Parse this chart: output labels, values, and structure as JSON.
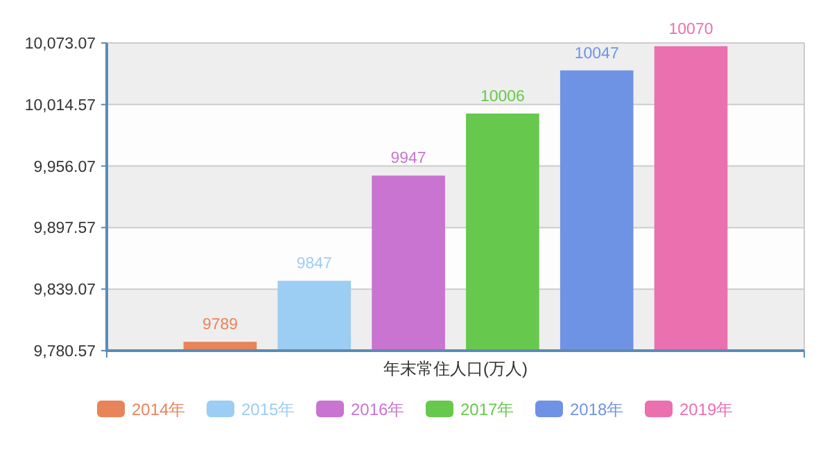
{
  "chart_data": {
    "type": "bar",
    "categories": [
      "年末常住人口(万人)"
    ],
    "series": [
      {
        "name": "2014年",
        "color": "#e8845a",
        "values": [
          9789
        ]
      },
      {
        "name": "2015年",
        "color": "#9ccdf3",
        "values": [
          9847
        ]
      },
      {
        "name": "2016年",
        "color": "#c874d0",
        "values": [
          9947
        ]
      },
      {
        "name": "2017年",
        "color": "#66c94d",
        "values": [
          10006
        ]
      },
      {
        "name": "2018年",
        "color": "#6f93e4",
        "values": [
          10047
        ]
      },
      {
        "name": "2019年",
        "color": "#ea70b0",
        "values": [
          10070
        ]
      }
    ],
    "ylim": [
      9780.57,
      10073.07
    ],
    "yticks": [
      {
        "value": 9780.57,
        "label": "9,780.57"
      },
      {
        "value": 9839.07,
        "label": "9,839.07"
      },
      {
        "value": 9897.57,
        "label": "9,897.57"
      },
      {
        "value": 9956.07,
        "label": "9,956.07"
      },
      {
        "value": 10014.57,
        "label": "10,014.57"
      },
      {
        "value": 10073.07,
        "label": "10,073.07"
      }
    ],
    "grid": "y",
    "legend": "bottom",
    "data_labels": true
  }
}
